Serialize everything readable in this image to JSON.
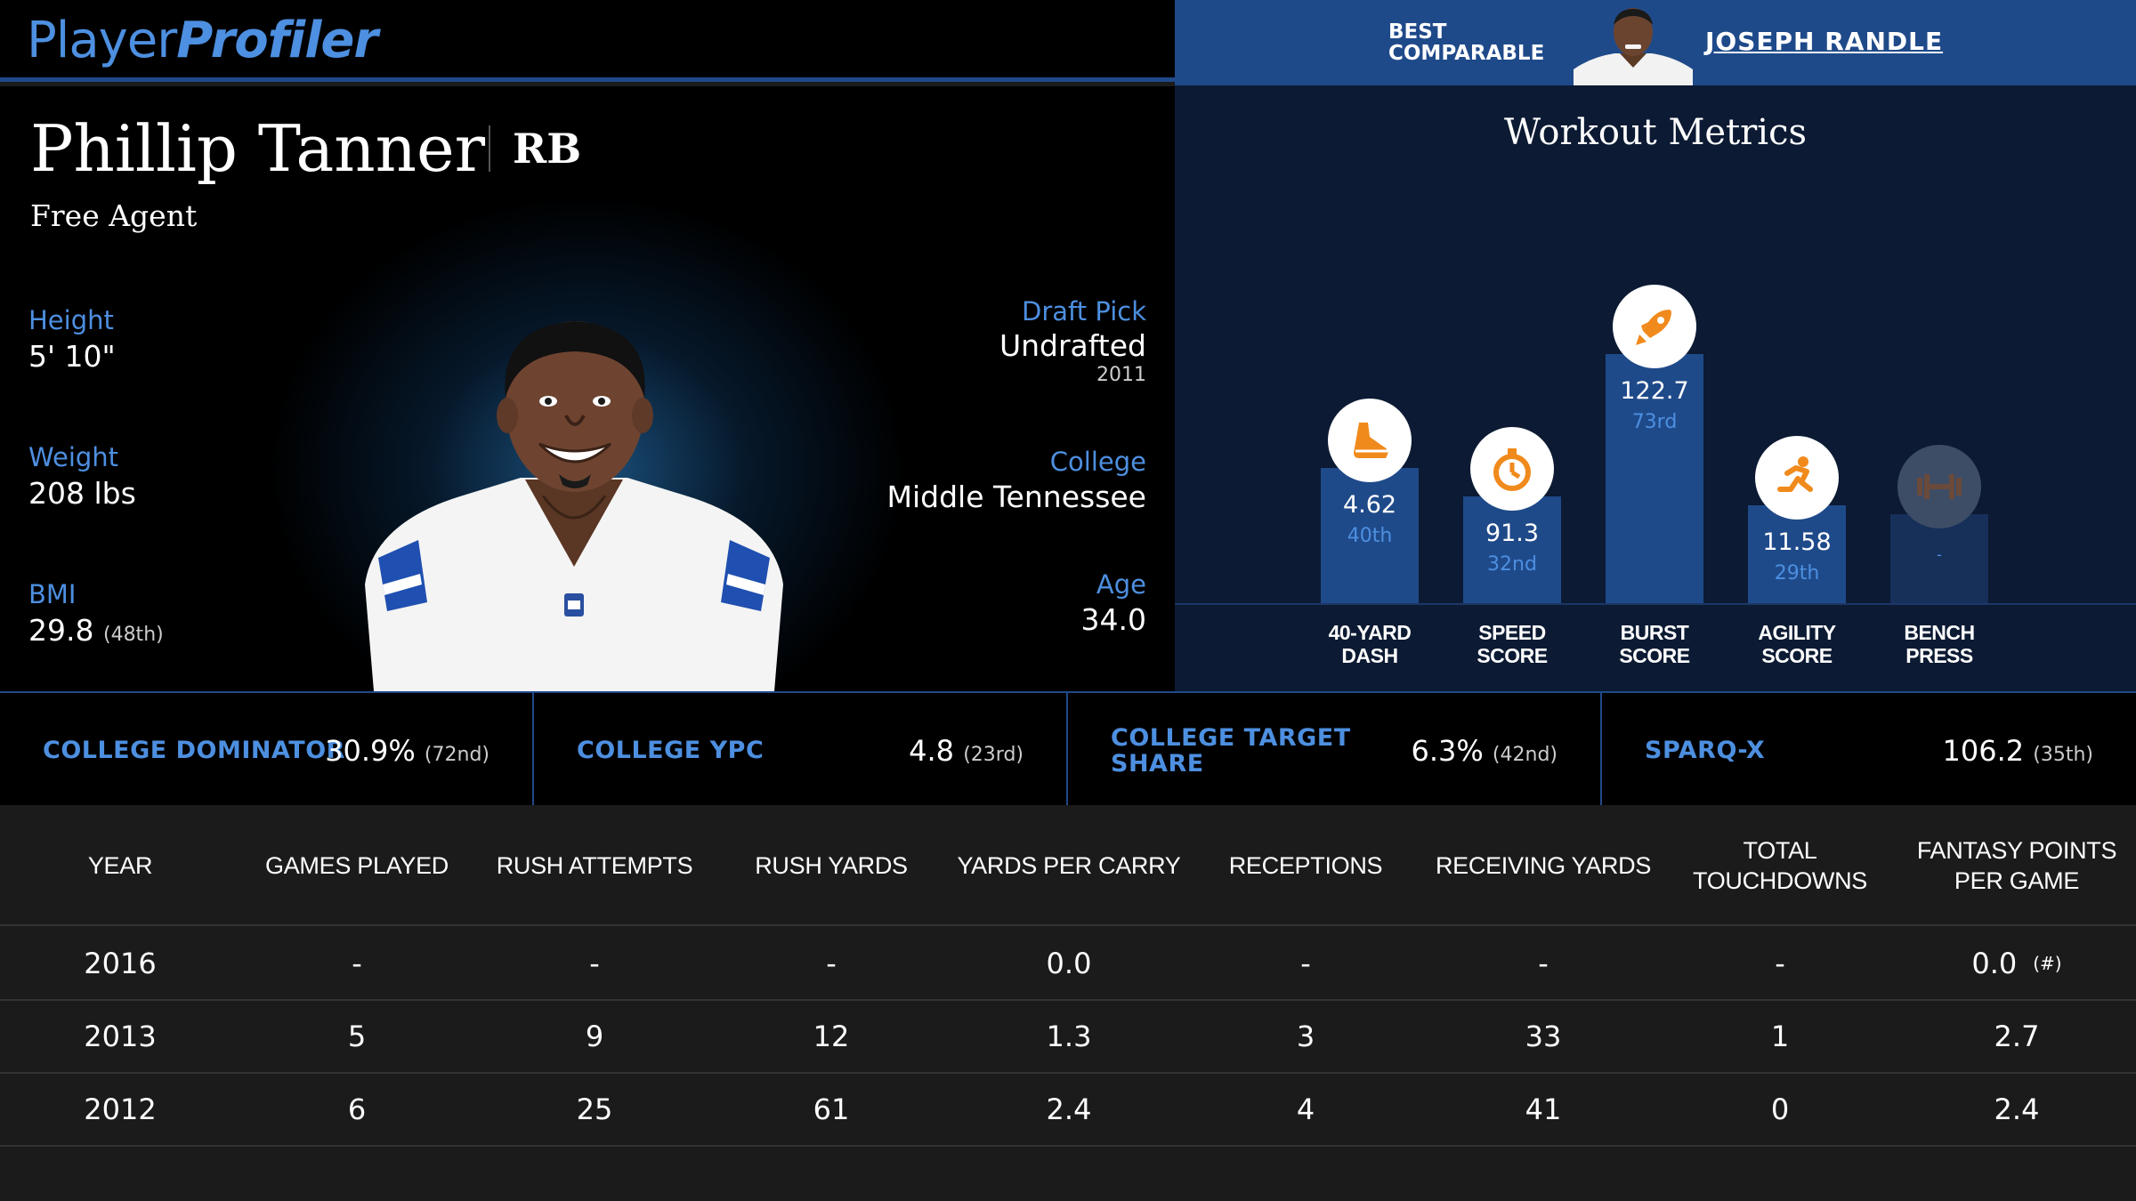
{
  "brand": {
    "logo_part1": "Player",
    "logo_part2": "Profiler"
  },
  "best_comparable": {
    "label_line1": "BEST",
    "label_line2": "COMPARABLE",
    "name": "JOSEPH RANDLE"
  },
  "player": {
    "name": "Phillip Tanner",
    "position": "RB",
    "team": "Free Agent",
    "height_label": "Height",
    "height": "5' 10\"",
    "weight_label": "Weight",
    "weight": "208 lbs",
    "bmi_label": "BMI",
    "bmi": "29.8",
    "bmi_rank": "(48th)",
    "draft_label": "Draft Pick",
    "draft": "Undrafted",
    "draft_year": "2011",
    "college_label": "College",
    "college": "Middle Tennessee",
    "age_label": "Age",
    "age": "34.0"
  },
  "workout": {
    "title": "Workout Metrics",
    "metrics": [
      {
        "label_line1": "40-YARD",
        "label_line2": "DASH",
        "value": "4.62",
        "percentile": "40th",
        "percentile_value": 40,
        "icon": "running-shoe-icon"
      },
      {
        "label_line1": "SPEED",
        "label_line2": "SCORE",
        "value": "91.3",
        "percentile": "32nd",
        "percentile_value": 32,
        "icon": "stopwatch-icon"
      },
      {
        "label_line1": "BURST",
        "label_line2": "SCORE",
        "value": "122.7",
        "percentile": "73rd",
        "percentile_value": 73,
        "icon": "rocket-icon"
      },
      {
        "label_line1": "AGILITY",
        "label_line2": "SCORE",
        "value": "11.58",
        "percentile": "29th",
        "percentile_value": 29,
        "icon": "running-person-icon"
      },
      {
        "label_line1": "BENCH",
        "label_line2": "PRESS",
        "value": "-",
        "percentile": "",
        "percentile_value": 0,
        "icon": "barbell-icon"
      }
    ]
  },
  "college_metrics": [
    {
      "label": "COLLEGE DOMINATOR",
      "value": "30.9%",
      "rank": "(72nd)"
    },
    {
      "label": "COLLEGE YPC",
      "value": "4.8",
      "rank": "(23rd)"
    },
    {
      "label_line1": "COLLEGE TARGET",
      "label_line2": "SHARE",
      "value": "6.3%",
      "rank": "(42nd)"
    },
    {
      "label": "SPARQ-X",
      "value": "106.2",
      "rank": "(35th)"
    }
  ],
  "table": {
    "headers": [
      "YEAR",
      "GAMES PLAYED",
      "RUSH ATTEMPTS",
      "RUSH YARDS",
      "YARDS PER CARRY",
      "RECEPTIONS",
      "RECEIVING YARDS",
      "TOTAL TOUCHDOWNS",
      "FANTASY POINTS PER GAME"
    ],
    "rows": [
      [
        "2016",
        "-",
        "-",
        "-",
        "0.0",
        "-",
        "-",
        "-",
        "0.0"
      ],
      [
        "2013",
        "5",
        "9",
        "12",
        "1.3",
        "3",
        "33",
        "1",
        "2.7"
      ],
      [
        "2012",
        "6",
        "25",
        "61",
        "2.4",
        "4",
        "41",
        "0",
        "2.4"
      ]
    ],
    "rank_note": "(#)"
  },
  "colors": {
    "accent": "#4d8fe0",
    "navy": "#1f4a8a",
    "dark_navy": "#0c1a33",
    "icon_orange": "#f08a1c"
  }
}
